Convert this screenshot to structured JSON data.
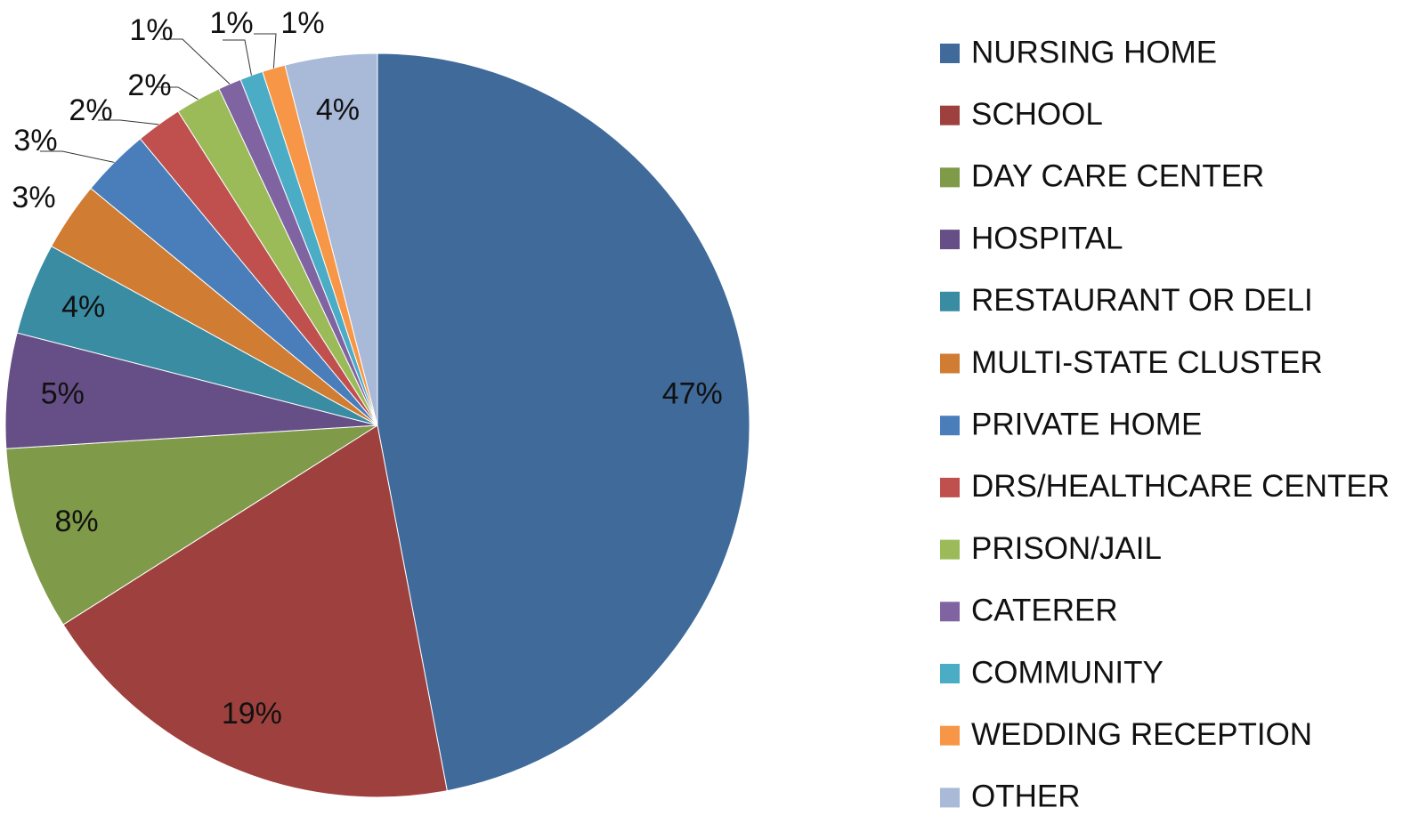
{
  "chart_data": {
    "type": "pie",
    "categories": [
      "NURSING HOME",
      "SCHOOL",
      "DAY CARE CENTER",
      "HOSPITAL",
      "RESTAURANT OR DELI",
      "MULTI-STATE CLUSTER",
      "PRIVATE HOME",
      "DRS/HEALTHCARE CENTER",
      "PRISON/JAIL",
      "CATERER",
      "COMMUNITY",
      "WEDDING RECEPTION",
      "OTHER"
    ],
    "values": [
      47,
      19,
      8,
      5,
      4,
      3,
      3,
      2,
      2,
      1,
      1,
      1,
      4
    ],
    "value_labels": [
      "47%",
      "19%",
      "8%",
      "5%",
      "4%",
      "3%",
      "3%",
      "2%",
      "2%",
      "1%",
      "1%",
      "1%",
      "4%"
    ],
    "colors": [
      "#3F6A9A",
      "#9E413E",
      "#7F9A48",
      "#664E86",
      "#3A8CA3",
      "#D07C33",
      "#4A7EBB",
      "#C0504D",
      "#9BBB59",
      "#8064A2",
      "#4BACC6",
      "#F79646",
      "#A9B9D8"
    ],
    "legend": "right"
  }
}
